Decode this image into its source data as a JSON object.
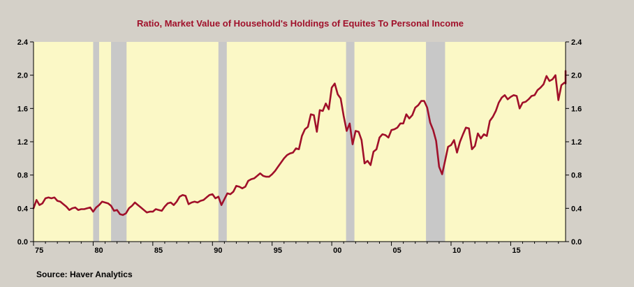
{
  "chart_data": {
    "type": "line",
    "title": "Ratio, Market Value of Household's Holdings of Equites To Personal Income",
    "source": "Source:  Haver Analytics",
    "xlim": [
      1975.0,
      2019.6
    ],
    "ylim": [
      0.0,
      2.4
    ],
    "y_ticks": [
      0.0,
      0.4,
      0.8,
      1.2,
      1.6,
      2.0,
      2.4
    ],
    "y_tick_labels": [
      "0.0",
      "0.4",
      "0.8",
      "1.2",
      "1.6",
      "2.0",
      "2.4"
    ],
    "x_ticks": [
      1975,
      1980,
      1985,
      1990,
      1995,
      2000,
      2005,
      2010,
      2015
    ],
    "x_tick_labels": [
      "75",
      "80",
      "85",
      "90",
      "95",
      "00",
      "05",
      "10",
      "15"
    ],
    "colors": {
      "plot_bg": "#fbf8c6",
      "recession": "#c8c8c8",
      "line": "#a0102a",
      "page_bg": "#d4d0c8",
      "title": "#a0102a"
    },
    "recessions": [
      [
        1980.0,
        1980.5
      ],
      [
        1981.5,
        1982.8
      ],
      [
        1990.5,
        1991.2
      ],
      [
        2001.2,
        2001.9
      ],
      [
        2007.9,
        2009.5
      ]
    ],
    "series": [
      {
        "values": [
          [
            1975.0,
            0.4
          ],
          [
            1975.25,
            0.5
          ],
          [
            1975.5,
            0.44
          ],
          [
            1975.75,
            0.46
          ],
          [
            1976.0,
            0.52
          ],
          [
            1976.25,
            0.53
          ],
          [
            1976.5,
            0.52
          ],
          [
            1976.75,
            0.53
          ],
          [
            1977.0,
            0.49
          ],
          [
            1977.25,
            0.48
          ],
          [
            1977.5,
            0.45
          ],
          [
            1977.75,
            0.42
          ],
          [
            1978.0,
            0.38
          ],
          [
            1978.25,
            0.4
          ],
          [
            1978.5,
            0.41
          ],
          [
            1978.75,
            0.38
          ],
          [
            1979.0,
            0.39
          ],
          [
            1979.25,
            0.39
          ],
          [
            1979.5,
            0.4
          ],
          [
            1979.75,
            0.41
          ],
          [
            1980.0,
            0.36
          ],
          [
            1980.25,
            0.41
          ],
          [
            1980.5,
            0.44
          ],
          [
            1980.75,
            0.48
          ],
          [
            1981.0,
            0.47
          ],
          [
            1981.25,
            0.46
          ],
          [
            1981.5,
            0.43
          ],
          [
            1981.75,
            0.37
          ],
          [
            1982.0,
            0.38
          ],
          [
            1982.25,
            0.33
          ],
          [
            1982.5,
            0.32
          ],
          [
            1982.75,
            0.34
          ],
          [
            1983.0,
            0.4
          ],
          [
            1983.25,
            0.43
          ],
          [
            1983.5,
            0.47
          ],
          [
            1983.75,
            0.44
          ],
          [
            1984.0,
            0.41
          ],
          [
            1984.25,
            0.38
          ],
          [
            1984.5,
            0.35
          ],
          [
            1984.75,
            0.36
          ],
          [
            1985.0,
            0.36
          ],
          [
            1985.25,
            0.39
          ],
          [
            1985.5,
            0.38
          ],
          [
            1985.75,
            0.37
          ],
          [
            1986.0,
            0.42
          ],
          [
            1986.25,
            0.46
          ],
          [
            1986.5,
            0.47
          ],
          [
            1986.75,
            0.44
          ],
          [
            1987.0,
            0.48
          ],
          [
            1987.25,
            0.54
          ],
          [
            1987.5,
            0.56
          ],
          [
            1987.75,
            0.55
          ],
          [
            1988.0,
            0.45
          ],
          [
            1988.25,
            0.47
          ],
          [
            1988.5,
            0.48
          ],
          [
            1988.75,
            0.47
          ],
          [
            1989.0,
            0.49
          ],
          [
            1989.25,
            0.5
          ],
          [
            1989.5,
            0.53
          ],
          [
            1989.75,
            0.56
          ],
          [
            1990.0,
            0.57
          ],
          [
            1990.25,
            0.52
          ],
          [
            1990.5,
            0.54
          ],
          [
            1990.75,
            0.44
          ],
          [
            1991.0,
            0.51
          ],
          [
            1991.25,
            0.58
          ],
          [
            1991.5,
            0.57
          ],
          [
            1991.75,
            0.6
          ],
          [
            1992.0,
            0.67
          ],
          [
            1992.25,
            0.66
          ],
          [
            1992.5,
            0.64
          ],
          [
            1992.75,
            0.66
          ],
          [
            1993.0,
            0.73
          ],
          [
            1993.25,
            0.75
          ],
          [
            1993.5,
            0.76
          ],
          [
            1993.75,
            0.79
          ],
          [
            1994.0,
            0.82
          ],
          [
            1994.25,
            0.79
          ],
          [
            1994.5,
            0.78
          ],
          [
            1994.75,
            0.78
          ],
          [
            1995.0,
            0.81
          ],
          [
            1995.25,
            0.85
          ],
          [
            1995.5,
            0.9
          ],
          [
            1995.75,
            0.95
          ],
          [
            1996.0,
            1.0
          ],
          [
            1996.25,
            1.04
          ],
          [
            1996.5,
            1.06
          ],
          [
            1996.75,
            1.07
          ],
          [
            1997.0,
            1.12
          ],
          [
            1997.25,
            1.11
          ],
          [
            1997.5,
            1.27
          ],
          [
            1997.75,
            1.35
          ],
          [
            1998.0,
            1.38
          ],
          [
            1998.25,
            1.53
          ],
          [
            1998.5,
            1.52
          ],
          [
            1998.75,
            1.32
          ],
          [
            1999.0,
            1.58
          ],
          [
            1999.25,
            1.57
          ],
          [
            1999.5,
            1.66
          ],
          [
            1999.75,
            1.59
          ],
          [
            2000.0,
            1.85
          ],
          [
            2000.25,
            1.9
          ],
          [
            2000.5,
            1.77
          ],
          [
            2000.75,
            1.72
          ],
          [
            2001.0,
            1.51
          ],
          [
            2001.25,
            1.33
          ],
          [
            2001.5,
            1.42
          ],
          [
            2001.75,
            1.17
          ],
          [
            2002.0,
            1.33
          ],
          [
            2002.25,
            1.32
          ],
          [
            2002.5,
            1.22
          ],
          [
            2002.75,
            0.94
          ],
          [
            2003.0,
            0.97
          ],
          [
            2003.25,
            0.92
          ],
          [
            2003.5,
            1.08
          ],
          [
            2003.75,
            1.11
          ],
          [
            2004.0,
            1.25
          ],
          [
            2004.25,
            1.29
          ],
          [
            2004.5,
            1.28
          ],
          [
            2004.75,
            1.25
          ],
          [
            2005.0,
            1.34
          ],
          [
            2005.25,
            1.35
          ],
          [
            2005.5,
            1.37
          ],
          [
            2005.75,
            1.42
          ],
          [
            2006.0,
            1.42
          ],
          [
            2006.25,
            1.53
          ],
          [
            2006.5,
            1.48
          ],
          [
            2006.75,
            1.52
          ],
          [
            2007.0,
            1.61
          ],
          [
            2007.25,
            1.64
          ],
          [
            2007.5,
            1.69
          ],
          [
            2007.75,
            1.69
          ],
          [
            2008.0,
            1.61
          ],
          [
            2008.25,
            1.43
          ],
          [
            2008.5,
            1.34
          ],
          [
            2008.75,
            1.21
          ],
          [
            2009.0,
            0.9
          ],
          [
            2009.25,
            0.81
          ],
          [
            2009.5,
            0.97
          ],
          [
            2009.75,
            1.14
          ],
          [
            2010.0,
            1.16
          ],
          [
            2010.25,
            1.22
          ],
          [
            2010.5,
            1.07
          ],
          [
            2010.75,
            1.2
          ],
          [
            2011.0,
            1.29
          ],
          [
            2011.25,
            1.37
          ],
          [
            2011.5,
            1.36
          ],
          [
            2011.75,
            1.11
          ],
          [
            2012.0,
            1.15
          ],
          [
            2012.25,
            1.3
          ],
          [
            2012.5,
            1.24
          ],
          [
            2012.75,
            1.29
          ],
          [
            2013.0,
            1.27
          ],
          [
            2013.25,
            1.45
          ],
          [
            2013.5,
            1.5
          ],
          [
            2013.75,
            1.57
          ],
          [
            2014.0,
            1.67
          ],
          [
            2014.25,
            1.73
          ],
          [
            2014.5,
            1.76
          ],
          [
            2014.75,
            1.71
          ],
          [
            2015.0,
            1.74
          ],
          [
            2015.25,
            1.76
          ],
          [
            2015.5,
            1.75
          ],
          [
            2015.75,
            1.6
          ],
          [
            2016.0,
            1.67
          ],
          [
            2016.25,
            1.68
          ],
          [
            2016.5,
            1.71
          ],
          [
            2016.75,
            1.75
          ],
          [
            2017.0,
            1.76
          ],
          [
            2017.25,
            1.82
          ],
          [
            2017.5,
            1.85
          ],
          [
            2017.75,
            1.89
          ],
          [
            2018.0,
            1.99
          ],
          [
            2018.25,
            1.93
          ],
          [
            2018.5,
            1.95
          ],
          [
            2018.75,
            2.0
          ],
          [
            2019.0,
            1.7
          ],
          [
            2019.25,
            1.88
          ],
          [
            2019.5,
            1.91
          ],
          [
            2019.75,
            1.9
          ],
          [
            2020.0,
            2.05
          ]
        ]
      }
    ]
  }
}
